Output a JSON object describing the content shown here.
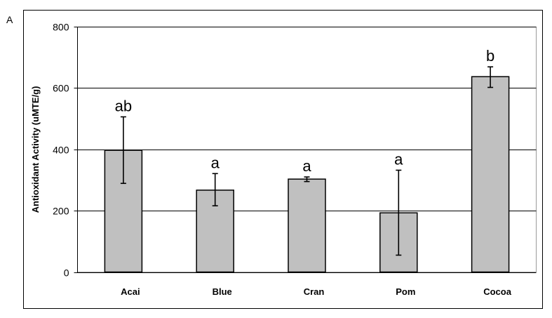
{
  "panel_label": "A",
  "chart_data": {
    "type": "bar",
    "categories": [
      "Acai",
      "Blue",
      "Cran",
      "Pom",
      "Cocoa"
    ],
    "values": [
      397,
      267,
      303,
      193,
      637
    ],
    "error_bars": [
      [
        289,
        506
      ],
      [
        216,
        321
      ],
      [
        295,
        310
      ],
      [
        55,
        332
      ],
      [
        602,
        669
      ]
    ],
    "significance_labels": [
      "ab",
      "a",
      "a",
      "a",
      "b"
    ],
    "ylabel": "Antioxidant Activity (uMTE/g)",
    "ylim": [
      0,
      800
    ],
    "yticks": [
      0,
      200,
      400,
      600,
      800
    ],
    "ytick_labels": [
      "0",
      "200",
      "400",
      "600",
      "800"
    ],
    "grid": true,
    "colors": {
      "bar_fill": "#c0c0c0",
      "bar_stroke": "#000000"
    }
  }
}
